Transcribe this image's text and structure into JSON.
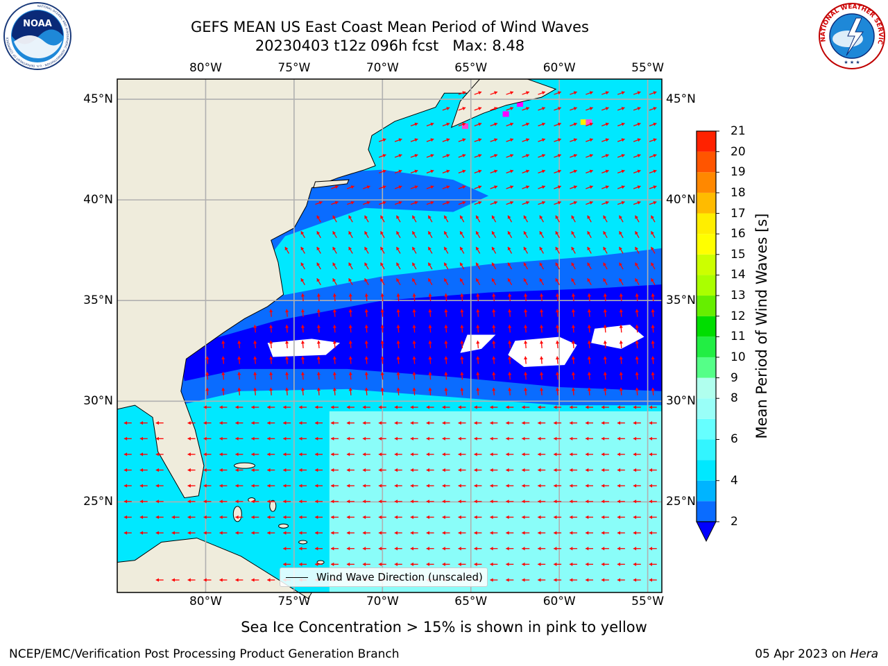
{
  "title": {
    "line1": "GEFS MEAN US East Coast Mean Period of Wind Waves",
    "line2": "20230403 t12z 096h fcst   Max: 8.48"
  },
  "subtitle": "Sea Ice Concentration > 15% is shown in pink to yellow",
  "footer": {
    "credit": "NCEP/EMC/Verification Post Processing Product Generation Branch",
    "date": "05 Apr 2023 on",
    "machine": "Hera"
  },
  "legend": {
    "label": "Wind Wave Direction (unscaled)"
  },
  "logos": {
    "noaa": "NOAA",
    "noaa_ring": "NATIONAL OCEANIC AND ATMOSPHERIC ADMINISTRATION · U.S. DEPARTMENT OF COMMERCE",
    "nws_ring": "NATIONAL WEATHER SERVICE"
  },
  "map": {
    "lon_range": [
      -85,
      -54.2
    ],
    "lat_range": [
      20.5,
      46
    ],
    "lon_ticks": [
      {
        "value": -80,
        "label": "80°W"
      },
      {
        "value": -75,
        "label": "75°W"
      },
      {
        "value": -70,
        "label": "70°W"
      },
      {
        "value": -65,
        "label": "65°W"
      },
      {
        "value": -60,
        "label": "60°W"
      },
      {
        "value": -55,
        "label": "55°W"
      }
    ],
    "lat_ticks": [
      {
        "value": 45,
        "label": "45°N"
      },
      {
        "value": 40,
        "label": "40°N"
      },
      {
        "value": 35,
        "label": "35°N"
      },
      {
        "value": 30,
        "label": "30°N"
      },
      {
        "value": 25,
        "label": "25°N"
      }
    ],
    "colors": {
      "land": "#efecdc",
      "grid": "#b0b0b0",
      "arrow": "#ff0000",
      "coast": "#000000"
    }
  },
  "colorbar": {
    "label": "Mean Period of Wind Waves [s]",
    "levels": [
      2,
      3,
      4,
      5,
      6,
      7,
      8,
      9,
      10,
      11,
      12,
      13,
      14,
      15,
      16,
      17,
      18,
      19,
      20,
      21
    ],
    "colors": [
      "#0a6cff",
      "#00b4ff",
      "#00e8ff",
      "#33f5ff",
      "#66ffff",
      "#99fff8",
      "#b0ffee",
      "#55ff88",
      "#22ee44",
      "#00dd00",
      "#66ee00",
      "#aaff00",
      "#ccff00",
      "#ffff00",
      "#ffee00",
      "#ffbb00",
      "#ff8800",
      "#ff5500",
      "#ff2200"
    ],
    "under_color": "#0000ff",
    "tick_labels": [
      "2",
      "4",
      "6",
      "8",
      "9",
      "10",
      "11",
      "12",
      "13",
      "14",
      "15",
      "16",
      "17",
      "18",
      "19",
      "20",
      "21"
    ]
  }
}
